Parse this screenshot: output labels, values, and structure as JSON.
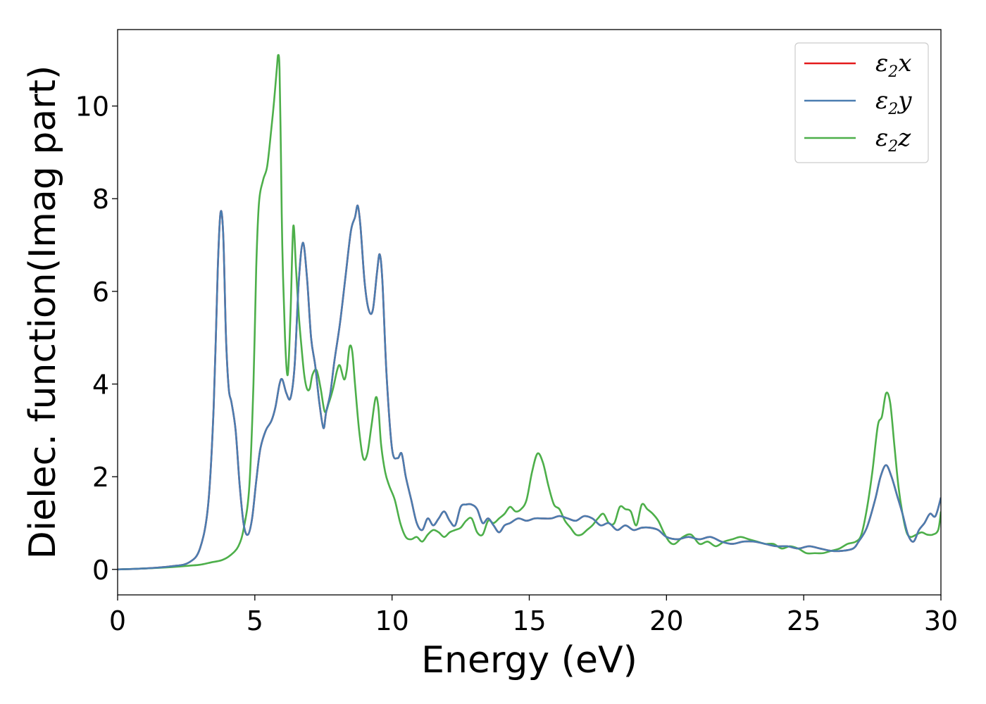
{
  "chart_data": {
    "type": "line",
    "title": "",
    "xlabel": "Energy (eV)",
    "ylabel": "Dielec. function(Imag part)",
    "xlim": [
      0,
      30
    ],
    "ylim": [
      -0.55,
      11.65
    ],
    "xticks": [
      0,
      5,
      10,
      15,
      20,
      25,
      30
    ],
    "yticks": [
      0,
      2,
      4,
      6,
      8,
      10
    ],
    "xtick_labels": [
      "0",
      "5",
      "10",
      "15",
      "20",
      "25",
      "30"
    ],
    "ytick_labels": [
      "0",
      "2",
      "4",
      "6",
      "8",
      "10"
    ],
    "grid": false,
    "legend_position": "top-right",
    "series": [
      {
        "name": "ε2x",
        "legend_main": "ε",
        "legend_sub": "2",
        "legend_tail": "x",
        "color": "#e41a1c",
        "x": [
          0,
          1,
          2,
          2.6,
          3.0,
          3.3,
          3.5,
          3.65,
          3.75,
          3.85,
          3.95,
          4.05,
          4.15,
          4.3,
          4.45,
          4.6,
          4.75,
          4.9,
          5.05,
          5.2,
          5.4,
          5.6,
          5.75,
          5.9,
          6.0,
          6.15,
          6.3,
          6.45,
          6.6,
          6.75,
          6.9,
          7.05,
          7.2,
          7.35,
          7.5,
          7.6,
          7.75,
          7.9,
          8.1,
          8.3,
          8.5,
          8.65,
          8.75,
          8.85,
          9.0,
          9.15,
          9.3,
          9.45,
          9.55,
          9.65,
          9.8,
          10.0,
          10.2,
          10.35,
          10.5,
          10.7,
          10.9,
          11.1,
          11.3,
          11.5,
          11.7,
          11.9,
          12.1,
          12.3,
          12.5,
          12.7,
          12.9,
          13.1,
          13.3,
          13.5,
          13.7,
          13.9,
          14.1,
          14.3,
          14.6,
          14.9,
          15.2,
          15.5,
          15.8,
          16.1,
          16.4,
          16.7,
          17.0,
          17.3,
          17.6,
          17.9,
          18.2,
          18.5,
          18.8,
          19.1,
          19.4,
          19.7,
          20.0,
          20.4,
          20.8,
          21.2,
          21.6,
          22.0,
          22.4,
          22.8,
          23.2,
          23.6,
          24.0,
          24.4,
          24.8,
          25.2,
          25.6,
          26.0,
          26.4,
          26.8,
          27.0,
          27.3,
          27.6,
          27.8,
          28.0,
          28.2,
          28.4,
          28.6,
          28.8,
          29.0,
          29.2,
          29.4,
          29.6,
          29.8,
          30.0
        ],
        "y": [
          0,
          0.02,
          0.07,
          0.15,
          0.45,
          1.4,
          3.5,
          6.5,
          7.7,
          7.2,
          5.0,
          3.9,
          3.6,
          3.0,
          1.8,
          0.95,
          0.75,
          1.1,
          1.9,
          2.6,
          3.0,
          3.2,
          3.5,
          4.0,
          4.1,
          3.8,
          3.7,
          4.4,
          6.2,
          7.05,
          6.3,
          5.0,
          4.4,
          3.6,
          3.05,
          3.4,
          3.8,
          4.5,
          5.3,
          6.3,
          7.3,
          7.6,
          7.85,
          7.4,
          6.2,
          5.6,
          5.6,
          6.4,
          6.8,
          6.2,
          4.2,
          2.6,
          2.4,
          2.5,
          2.0,
          1.5,
          1.0,
          0.85,
          1.1,
          0.95,
          1.1,
          1.25,
          1.05,
          0.95,
          1.35,
          1.4,
          1.4,
          1.3,
          1.0,
          1.1,
          0.95,
          0.8,
          0.95,
          1.0,
          1.1,
          1.05,
          1.1,
          1.1,
          1.1,
          1.15,
          1.1,
          1.05,
          1.15,
          1.1,
          0.95,
          1.0,
          0.85,
          0.95,
          0.85,
          0.9,
          0.9,
          0.85,
          0.7,
          0.65,
          0.7,
          0.65,
          0.7,
          0.6,
          0.55,
          0.6,
          0.6,
          0.55,
          0.5,
          0.5,
          0.45,
          0.5,
          0.45,
          0.4,
          0.4,
          0.45,
          0.6,
          0.9,
          1.5,
          2.0,
          2.25,
          2.0,
          1.6,
          1.2,
          0.75,
          0.6,
          0.85,
          1.0,
          1.2,
          1.15,
          1.55
        ]
      },
      {
        "name": "ε2y",
        "legend_main": "ε",
        "legend_sub": "2",
        "legend_tail": "y",
        "color": "#4a7db0",
        "x": [
          0,
          1,
          2,
          2.6,
          3.0,
          3.3,
          3.5,
          3.65,
          3.75,
          3.85,
          3.95,
          4.05,
          4.15,
          4.3,
          4.45,
          4.6,
          4.75,
          4.9,
          5.05,
          5.2,
          5.4,
          5.6,
          5.75,
          5.9,
          6.0,
          6.15,
          6.3,
          6.45,
          6.6,
          6.75,
          6.9,
          7.05,
          7.2,
          7.35,
          7.5,
          7.6,
          7.75,
          7.9,
          8.1,
          8.3,
          8.5,
          8.65,
          8.75,
          8.85,
          9.0,
          9.15,
          9.3,
          9.45,
          9.55,
          9.65,
          9.8,
          10.0,
          10.2,
          10.35,
          10.5,
          10.7,
          10.9,
          11.1,
          11.3,
          11.5,
          11.7,
          11.9,
          12.1,
          12.3,
          12.5,
          12.7,
          12.9,
          13.1,
          13.3,
          13.5,
          13.7,
          13.9,
          14.1,
          14.3,
          14.6,
          14.9,
          15.2,
          15.5,
          15.8,
          16.1,
          16.4,
          16.7,
          17.0,
          17.3,
          17.6,
          17.9,
          18.2,
          18.5,
          18.8,
          19.1,
          19.4,
          19.7,
          20.0,
          20.4,
          20.8,
          21.2,
          21.6,
          22.0,
          22.4,
          22.8,
          23.2,
          23.6,
          24.0,
          24.4,
          24.8,
          25.2,
          25.6,
          26.0,
          26.4,
          26.8,
          27.0,
          27.3,
          27.6,
          27.8,
          28.0,
          28.2,
          28.4,
          28.6,
          28.8,
          29.0,
          29.2,
          29.4,
          29.6,
          29.8,
          30.0
        ],
        "y": [
          0,
          0.02,
          0.07,
          0.15,
          0.45,
          1.4,
          3.5,
          6.5,
          7.7,
          7.2,
          5.0,
          3.9,
          3.6,
          3.0,
          1.8,
          0.95,
          0.75,
          1.1,
          1.9,
          2.6,
          3.0,
          3.2,
          3.5,
          4.0,
          4.1,
          3.8,
          3.7,
          4.4,
          6.2,
          7.05,
          6.3,
          5.0,
          4.4,
          3.6,
          3.05,
          3.4,
          3.8,
          4.5,
          5.3,
          6.3,
          7.3,
          7.6,
          7.85,
          7.4,
          6.2,
          5.6,
          5.6,
          6.4,
          6.8,
          6.2,
          4.2,
          2.6,
          2.4,
          2.5,
          2.0,
          1.5,
          1.0,
          0.85,
          1.1,
          0.95,
          1.1,
          1.25,
          1.05,
          0.95,
          1.35,
          1.4,
          1.4,
          1.3,
          1.0,
          1.1,
          0.95,
          0.8,
          0.95,
          1.0,
          1.1,
          1.05,
          1.1,
          1.1,
          1.1,
          1.15,
          1.1,
          1.05,
          1.15,
          1.1,
          0.95,
          1.0,
          0.85,
          0.95,
          0.85,
          0.9,
          0.9,
          0.85,
          0.7,
          0.65,
          0.7,
          0.65,
          0.7,
          0.6,
          0.55,
          0.6,
          0.6,
          0.55,
          0.5,
          0.5,
          0.45,
          0.5,
          0.45,
          0.4,
          0.4,
          0.45,
          0.6,
          0.9,
          1.5,
          2.0,
          2.25,
          2.0,
          1.6,
          1.2,
          0.75,
          0.6,
          0.85,
          1.0,
          1.2,
          1.15,
          1.55
        ]
      },
      {
        "name": "ε2z",
        "legend_main": "ε",
        "legend_sub": "2",
        "legend_tail": "z",
        "color": "#4daf4a",
        "x": [
          0,
          1,
          2,
          2.6,
          3.0,
          3.4,
          3.8,
          4.1,
          4.4,
          4.6,
          4.8,
          4.95,
          5.05,
          5.15,
          5.3,
          5.45,
          5.6,
          5.7,
          5.8,
          5.85,
          5.9,
          5.95,
          6.0,
          6.1,
          6.2,
          6.3,
          6.4,
          6.5,
          6.6,
          6.7,
          6.8,
          6.9,
          7.0,
          7.1,
          7.25,
          7.4,
          7.55,
          7.7,
          7.85,
          8.0,
          8.1,
          8.25,
          8.35,
          8.45,
          8.55,
          8.65,
          8.8,
          8.95,
          9.1,
          9.25,
          9.4,
          9.5,
          9.6,
          9.75,
          9.9,
          10.1,
          10.3,
          10.5,
          10.7,
          10.9,
          11.1,
          11.3,
          11.5,
          11.7,
          11.9,
          12.1,
          12.3,
          12.5,
          12.7,
          12.9,
          13.1,
          13.3,
          13.5,
          13.7,
          13.9,
          14.1,
          14.3,
          14.5,
          14.7,
          14.9,
          15.1,
          15.3,
          15.5,
          15.7,
          15.9,
          16.1,
          16.3,
          16.5,
          16.7,
          16.9,
          17.1,
          17.3,
          17.5,
          17.7,
          17.9,
          18.1,
          18.3,
          18.5,
          18.7,
          18.9,
          19.1,
          19.3,
          19.5,
          19.7,
          19.9,
          20.1,
          20.3,
          20.6,
          20.9,
          21.2,
          21.5,
          21.8,
          22.1,
          22.4,
          22.7,
          23.0,
          23.3,
          23.6,
          23.9,
          24.2,
          24.5,
          24.8,
          25.1,
          25.4,
          25.7,
          26.0,
          26.3,
          26.6,
          26.9,
          27.1,
          27.3,
          27.5,
          27.7,
          27.85,
          28.0,
          28.15,
          28.3,
          28.45,
          28.6,
          28.75,
          28.9,
          29.1,
          29.3,
          29.5,
          29.7,
          29.9,
          30.0
        ],
        "y": [
          0,
          0.02,
          0.05,
          0.08,
          0.1,
          0.15,
          0.2,
          0.3,
          0.5,
          0.9,
          1.8,
          4.0,
          6.5,
          7.9,
          8.4,
          8.7,
          9.5,
          10.1,
          10.8,
          11.1,
          10.8,
          9.0,
          7.0,
          5.0,
          4.2,
          5.5,
          7.4,
          6.5,
          5.5,
          4.8,
          4.2,
          3.9,
          3.9,
          4.2,
          4.3,
          3.9,
          3.4,
          3.6,
          3.9,
          4.3,
          4.4,
          4.1,
          4.3,
          4.8,
          4.7,
          4.0,
          3.0,
          2.4,
          2.5,
          3.1,
          3.7,
          3.5,
          2.7,
          2.1,
          1.8,
          1.5,
          1.0,
          0.7,
          0.65,
          0.7,
          0.6,
          0.75,
          0.85,
          0.8,
          0.7,
          0.8,
          0.85,
          0.9,
          1.05,
          1.1,
          0.8,
          0.75,
          1.05,
          1.0,
          1.1,
          1.2,
          1.35,
          1.25,
          1.3,
          1.5,
          2.1,
          2.5,
          2.3,
          1.8,
          1.4,
          1.3,
          1.05,
          0.9,
          0.75,
          0.75,
          0.85,
          0.95,
          1.1,
          1.2,
          1.0,
          1.0,
          1.35,
          1.3,
          1.25,
          0.95,
          1.4,
          1.3,
          1.2,
          1.05,
          0.8,
          0.6,
          0.55,
          0.7,
          0.75,
          0.55,
          0.6,
          0.5,
          0.6,
          0.65,
          0.7,
          0.65,
          0.6,
          0.55,
          0.55,
          0.45,
          0.5,
          0.45,
          0.35,
          0.35,
          0.35,
          0.4,
          0.45,
          0.55,
          0.6,
          0.75,
          1.3,
          2.1,
          3.1,
          3.3,
          3.8,
          3.6,
          2.7,
          1.8,
          1.2,
          0.8,
          0.7,
          0.75,
          0.8,
          0.75,
          0.75,
          0.85,
          1.25
        ]
      }
    ]
  }
}
